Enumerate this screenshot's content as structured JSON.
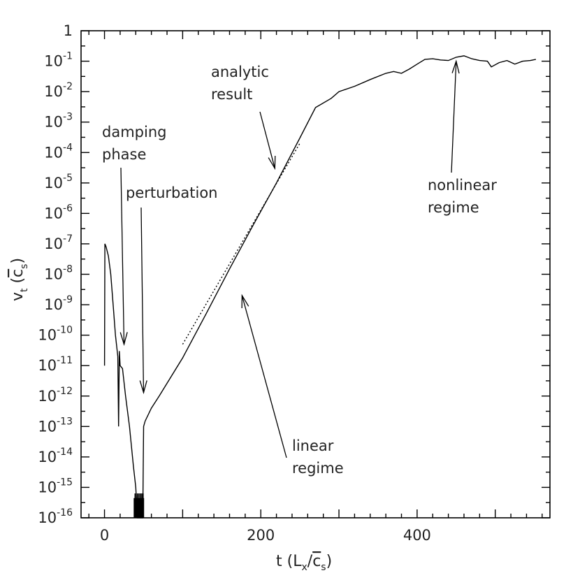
{
  "chart_data": {
    "type": "line",
    "xlabel": "t (L_x / c̄_s)",
    "ylabel": "v_t (c̄_s)",
    "x_scale": "linear",
    "y_scale": "log",
    "xlim": [
      -30,
      570
    ],
    "ylim": [
      1e-16,
      1
    ],
    "x_ticks": [
      0,
      200,
      400
    ],
    "y_tick_labels": [
      {
        "base": "1",
        "exp": ""
      },
      {
        "base": "10",
        "exp": "-1"
      },
      {
        "base": "10",
        "exp": "-2"
      },
      {
        "base": "10",
        "exp": "-3"
      },
      {
        "base": "10",
        "exp": "-4"
      },
      {
        "base": "10",
        "exp": "-5"
      },
      {
        "base": "10",
        "exp": "-6"
      },
      {
        "base": "10",
        "exp": "-7"
      },
      {
        "base": "10",
        "exp": "-8"
      },
      {
        "base": "10",
        "exp": "-9"
      },
      {
        "base": "10",
        "exp": "-10"
      },
      {
        "base": "10",
        "exp": "-11"
      },
      {
        "base": "10",
        "exp": "-12"
      },
      {
        "base": "10",
        "exp": "-13"
      },
      {
        "base": "10",
        "exp": "-14"
      },
      {
        "base": "10",
        "exp": "-15"
      },
      {
        "base": "10",
        "exp": "-16"
      }
    ],
    "series": [
      {
        "style": "solid",
        "points": [
          [
            0,
            1e-11
          ],
          [
            0.5,
            1e-07
          ],
          [
            2,
            8e-08
          ],
          [
            5,
            4e-08
          ],
          [
            8,
            1e-08
          ],
          [
            11,
            1e-09
          ],
          [
            14,
            1e-10
          ],
          [
            17,
            2e-11
          ],
          [
            18,
            1e-13
          ],
          [
            19,
            3e-11
          ],
          [
            20,
            1e-11
          ],
          [
            23,
            8e-12
          ],
          [
            27,
            1e-12
          ],
          [
            32,
            1e-13
          ],
          [
            37,
            5e-15
          ],
          [
            40,
            1e-15
          ],
          [
            42,
            1e-16
          ],
          [
            47,
            1e-16
          ],
          [
            49,
            1e-16
          ],
          [
            50,
            1e-13
          ],
          [
            52,
            1.5e-13
          ],
          [
            60,
            4e-13
          ],
          [
            70,
            1e-12
          ],
          [
            100,
            1.8e-11
          ],
          [
            130,
            5e-10
          ],
          [
            160,
            1.5e-08
          ],
          [
            190,
            4e-07
          ],
          [
            220,
            1e-05
          ],
          [
            250,
            0.0003
          ],
          [
            270,
            0.003
          ],
          [
            290,
            0.006
          ],
          [
            300,
            0.01
          ],
          [
            320,
            0.015
          ],
          [
            340,
            0.025
          ],
          [
            360,
            0.04
          ],
          [
            370,
            0.046
          ],
          [
            380,
            0.04
          ],
          [
            390,
            0.055
          ],
          [
            400,
            0.08
          ],
          [
            410,
            0.115
          ],
          [
            420,
            0.12
          ],
          [
            430,
            0.11
          ],
          [
            440,
            0.105
          ],
          [
            450,
            0.135
          ],
          [
            460,
            0.15
          ],
          [
            470,
            0.12
          ],
          [
            480,
            0.105
          ],
          [
            490,
            0.1
          ],
          [
            495,
            0.065
          ],
          [
            505,
            0.09
          ],
          [
            515,
            0.105
          ],
          [
            525,
            0.08
          ],
          [
            535,
            0.1
          ],
          [
            545,
            0.105
          ],
          [
            552,
            0.115
          ]
        ]
      },
      {
        "style": "dotted",
        "points": [
          [
            100,
            5e-11
          ],
          [
            250,
            0.0002
          ]
        ]
      }
    ],
    "annotations": [
      {
        "lines": [
          "analytic",
          "result"
        ],
        "target": [
          218,
          3e-05
        ]
      },
      {
        "lines": [
          "damping",
          "phase"
        ],
        "target": [
          25,
          5e-11
        ]
      },
      {
        "lines": [
          "perturbation"
        ],
        "target": [
          50,
          1.3e-12
        ]
      },
      {
        "lines": [
          "nonlinear",
          "regime"
        ],
        "target": [
          450,
          0.1
        ]
      },
      {
        "lines": [
          "linear",
          "regime"
        ],
        "target": [
          176,
          2e-09
        ]
      }
    ]
  }
}
